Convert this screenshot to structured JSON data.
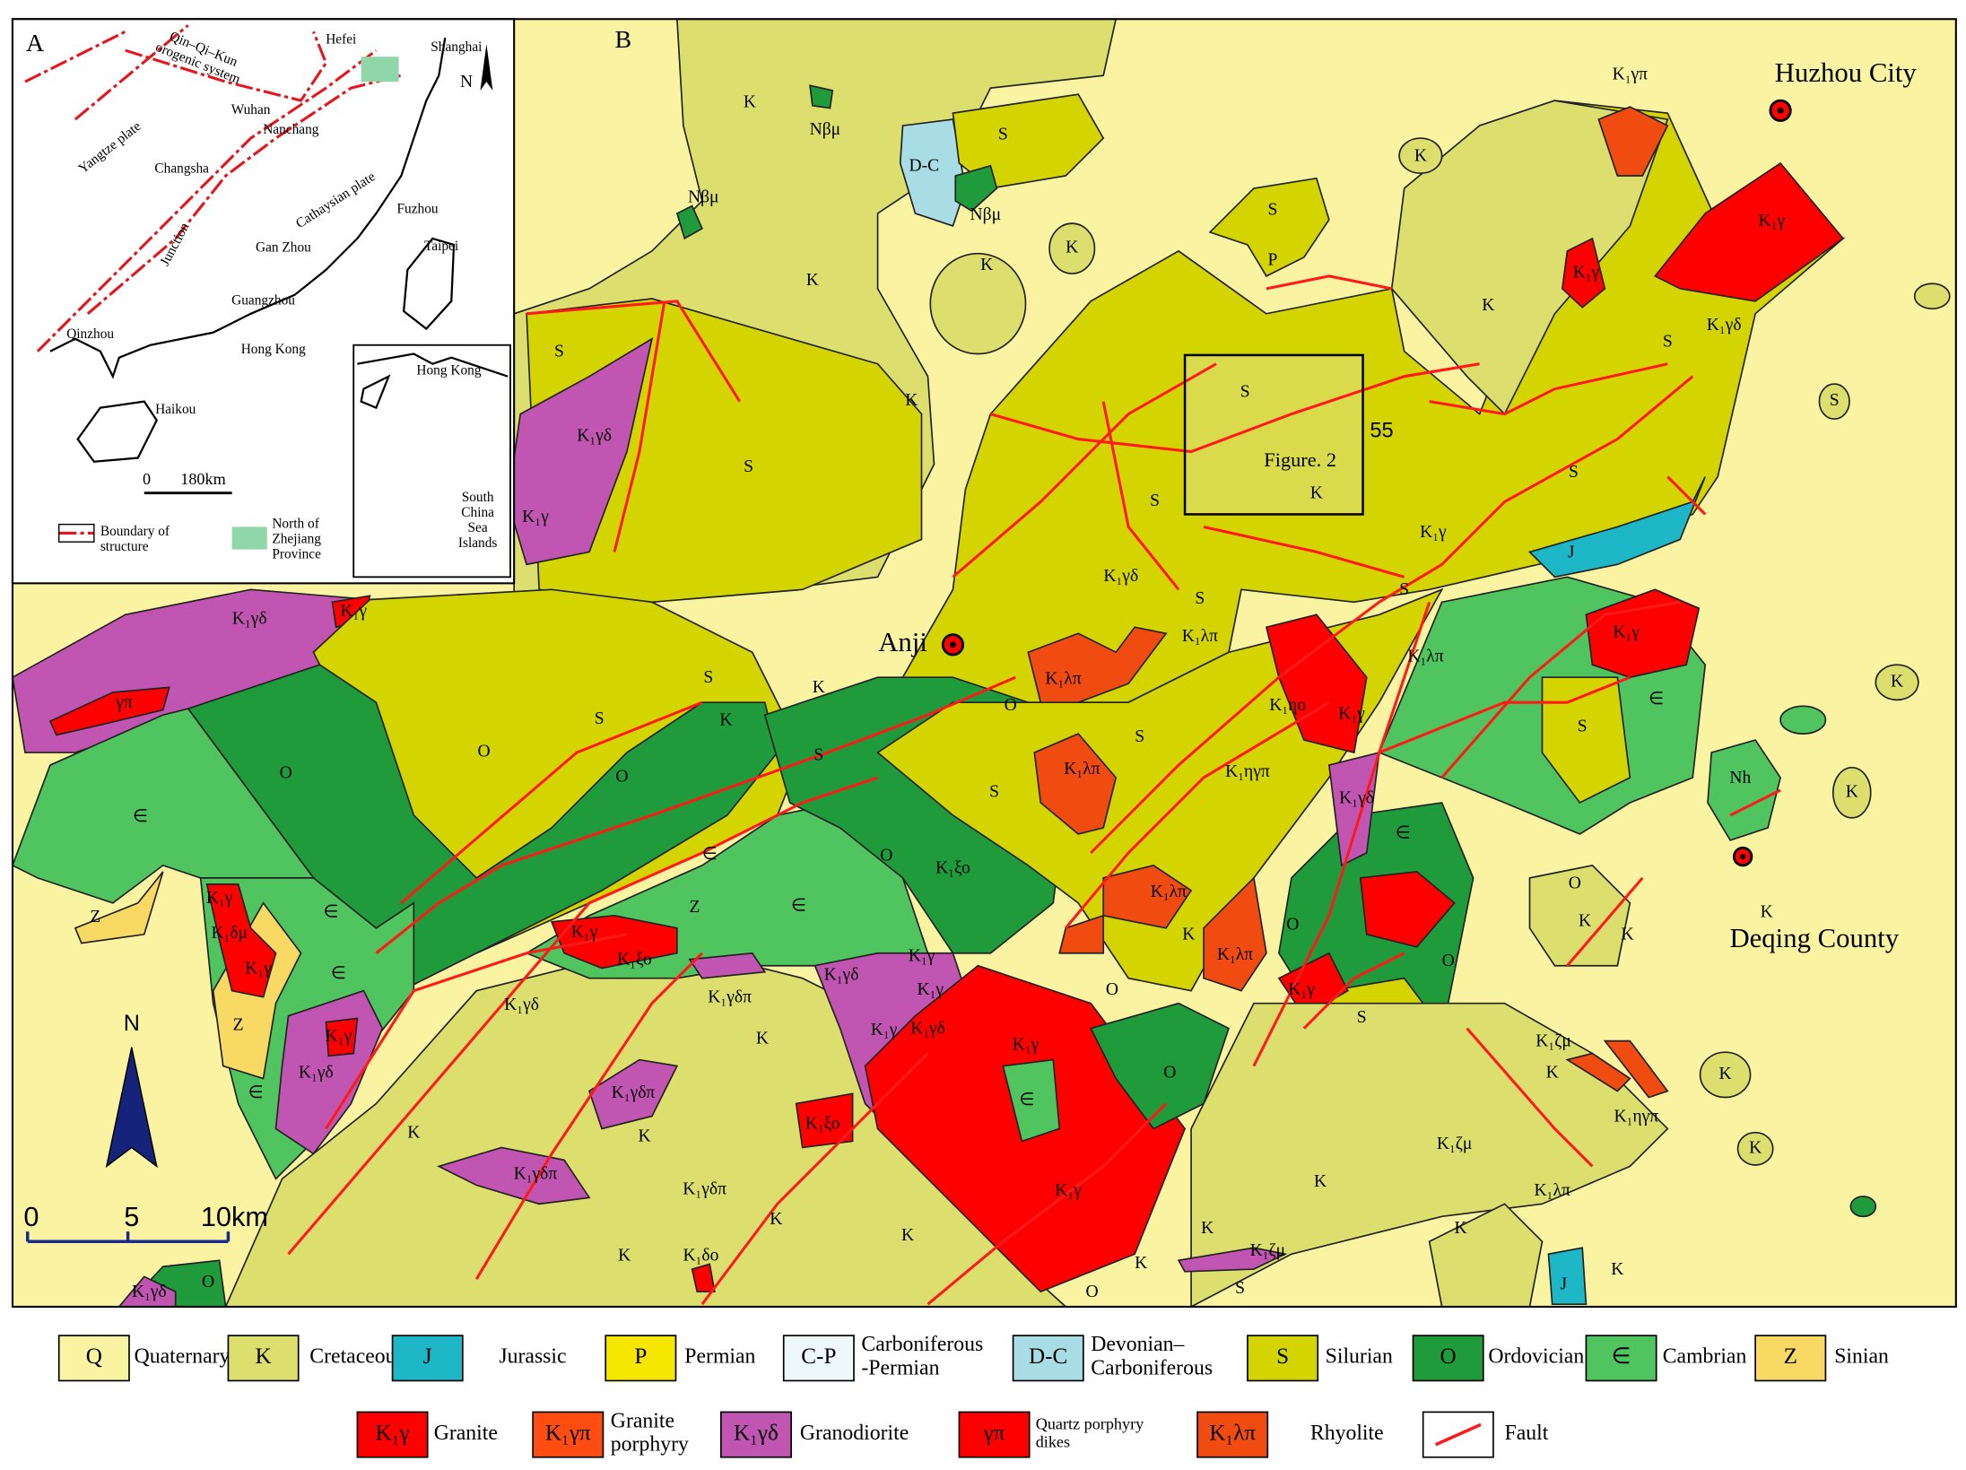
{
  "inset_map": {
    "panel_label": "A",
    "places": [
      "Hefei",
      "Shanghai",
      [
        "Qin–Qi–Kun",
        "orogenic system"
      ],
      "Wuhan",
      "Nanchang",
      "Yangtze plate",
      "Changsha",
      "Cathaysian plate",
      "Fuzhou",
      "Taipei",
      "Junction",
      "Gan Zhou",
      "Guangzhou",
      "Qinzhou",
      "Hong Kong",
      "Haikou",
      "Hong Kong",
      [
        "South",
        "China",
        "Sea",
        "Islands"
      ]
    ],
    "north": "N",
    "scale": [
      "0",
      "180km"
    ],
    "legend": [
      [
        "Boundary of",
        "structure"
      ],
      [
        "North of",
        "Zhejiang",
        "Province"
      ]
    ]
  },
  "main_map": {
    "panel_label": "B",
    "cities": [
      "Huzhou City",
      "Anji",
      "Deqing County"
    ],
    "figure_box": "Figure. 2",
    "dip": "55",
    "north": "N",
    "scale": [
      "0",
      "5",
      "10km"
    ],
    "labels": [
      "K",
      "Nβμ",
      "S",
      "D-C",
      "Nβμ",
      "Nβμ",
      "K",
      "K",
      "K",
      "S",
      "P",
      "K",
      "K₁γπ",
      "K₁γ",
      "K₁γ",
      "K",
      "S",
      "K₁γδ",
      "S",
      "S",
      "J",
      "K₁γ",
      "S",
      "K",
      "S",
      "K₁γδ",
      "K₁γ",
      "S",
      "K",
      "S",
      "K₁γδ",
      "K₁λπ",
      "S",
      "S",
      "K₁λπ",
      "K₁γ",
      "K₁λπ",
      "K₁ηο",
      "K₁γ",
      "S",
      "∈",
      "K",
      "S",
      "K",
      "K",
      "S",
      "O",
      "O",
      "O",
      "∈",
      "O",
      "S",
      "S",
      "K₁λπ",
      "K₁ηγπ",
      "S",
      "K₁γδ",
      "∈",
      "Nh",
      "K",
      "O",
      "K₁ξο",
      "∈",
      "∈",
      "K₁λπ",
      "O",
      "K",
      "K",
      "K",
      "Z",
      "K₁γ",
      "K₁δμ",
      "K₁γ",
      "∈",
      "∈",
      "Z",
      "K₁γ",
      "K₁ξο",
      "K₁γδ",
      "K₁γ",
      "K₁γ",
      "K₁γδπ",
      "K₁γδ",
      "K",
      "K₁γ",
      "K₁γδ",
      "K₁γ",
      "K",
      "K₁λπ",
      "O",
      "K₁γ",
      "O",
      "O",
      "S",
      "Z",
      "K₁γ",
      "K₁γδ",
      "∈",
      "K₁γδπ",
      "K",
      "K",
      "K₁γδπ",
      "K₁ξο",
      "∈",
      "O",
      "K₁ζμ",
      "K",
      "K₁ηγπ",
      "K₁ζμ",
      "K",
      "K",
      "K₁γ",
      "K₁γδπ",
      "K",
      "K",
      "K",
      "K₁δο",
      "K",
      "K",
      "K₁ζμ",
      "K",
      "S",
      "O",
      "K₁λπ",
      "K",
      "J",
      "K",
      "K₁γδ",
      "O",
      "K₁γ",
      "K₁γδ",
      "γπ"
    ]
  },
  "legend": [
    {
      "symbol": "Q",
      "label": "Quaternary",
      "color": "#faf3a2"
    },
    {
      "symbol": "K",
      "label": "Cretaceous",
      "color": "#dcdf6e"
    },
    {
      "symbol": "J",
      "label": "Jurassic",
      "color": "#1db7c8"
    },
    {
      "symbol": "P",
      "label": "Permian",
      "color": "#f7e600"
    },
    {
      "symbol": "C-P",
      "label": [
        "Carboniferous",
        "-Permian"
      ],
      "color": "#eef8fb"
    },
    {
      "symbol": "D-C",
      "label": [
        "Devonian–",
        "Carboniferous"
      ],
      "color": "#a9dde6"
    },
    {
      "symbol": "S",
      "label": "Silurian",
      "color": "#d4d400"
    },
    {
      "symbol": "O",
      "label": "Ordovician",
      "color": "#1f9b3b"
    },
    {
      "symbol": "∈",
      "label": "Cambrian",
      "color": "#4fc45f"
    },
    {
      "symbol": "Z",
      "label": "Sinian",
      "color": "#f8d964"
    },
    {
      "symbol": "K₁γ",
      "label": "Granite",
      "color": "#ff0000"
    },
    {
      "symbol": "K₁γπ",
      "label": [
        "Granite",
        "porphyry"
      ],
      "color": "#ff4d12"
    },
    {
      "symbol": "K₁γδ",
      "label": "Granodiorite",
      "color": "#c156b2"
    },
    {
      "symbol": "γπ",
      "label": [
        "Quartz porphyry",
        "dikes"
      ],
      "color": "#ff0000"
    },
    {
      "symbol": "K₁λπ",
      "label": "Rhyolite",
      "color": "#f04c12"
    },
    {
      "label": "Fault",
      "color": "#ffffff"
    }
  ]
}
